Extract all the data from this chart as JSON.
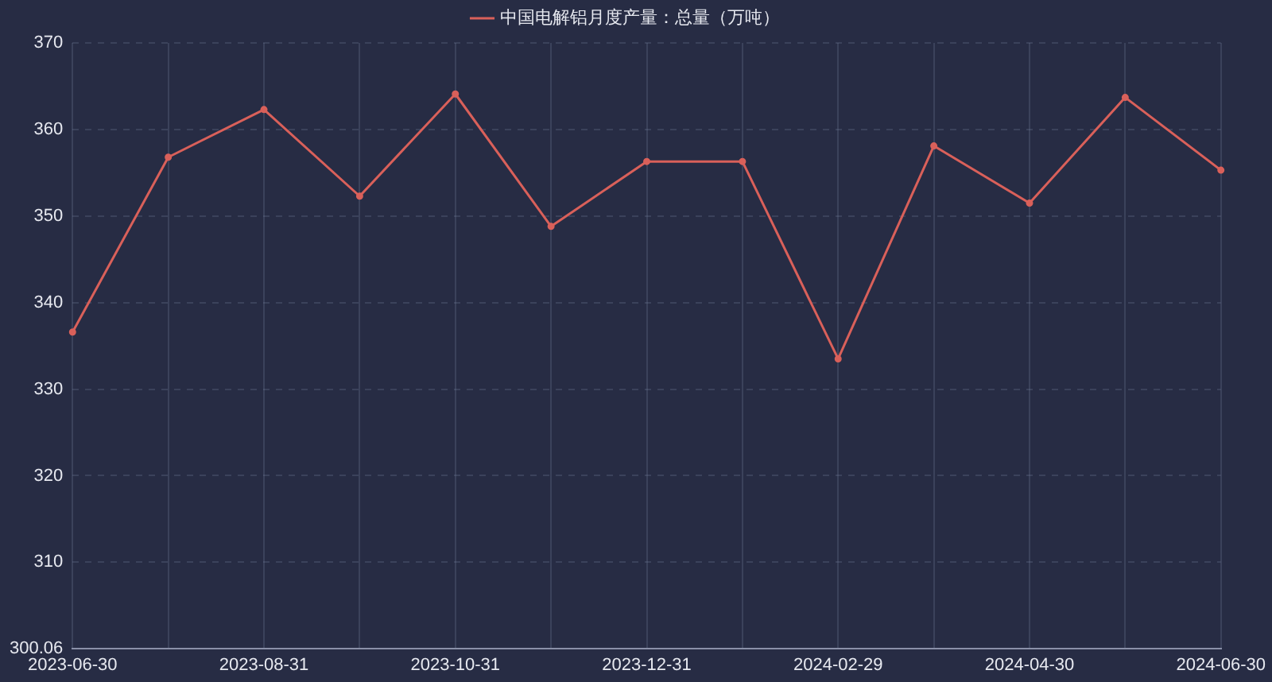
{
  "chart_data": {
    "type": "line",
    "categories": [
      "2023-06-30",
      null,
      "2023-08-31",
      null,
      "2023-10-31",
      null,
      "2023-12-31",
      null,
      "2024-02-29",
      null,
      "2024-04-30",
      null,
      "2024-06-30"
    ],
    "series": [
      {
        "name": "中国电解铝月度产量：总量（万吨）",
        "color": "#d9605a",
        "values": [
          336.6,
          356.8,
          362.3,
          352.3,
          364.1,
          348.8,
          356.3,
          356.3,
          333.5,
          358.1,
          351.5,
          363.7,
          355.3
        ]
      }
    ],
    "ylim": [
      300.06,
      370
    ],
    "yticks": [
      300.06,
      310,
      320,
      330,
      340,
      350,
      360,
      370
    ],
    "grid": true,
    "legend": "top",
    "marker": "circle",
    "line_style": "solid"
  }
}
